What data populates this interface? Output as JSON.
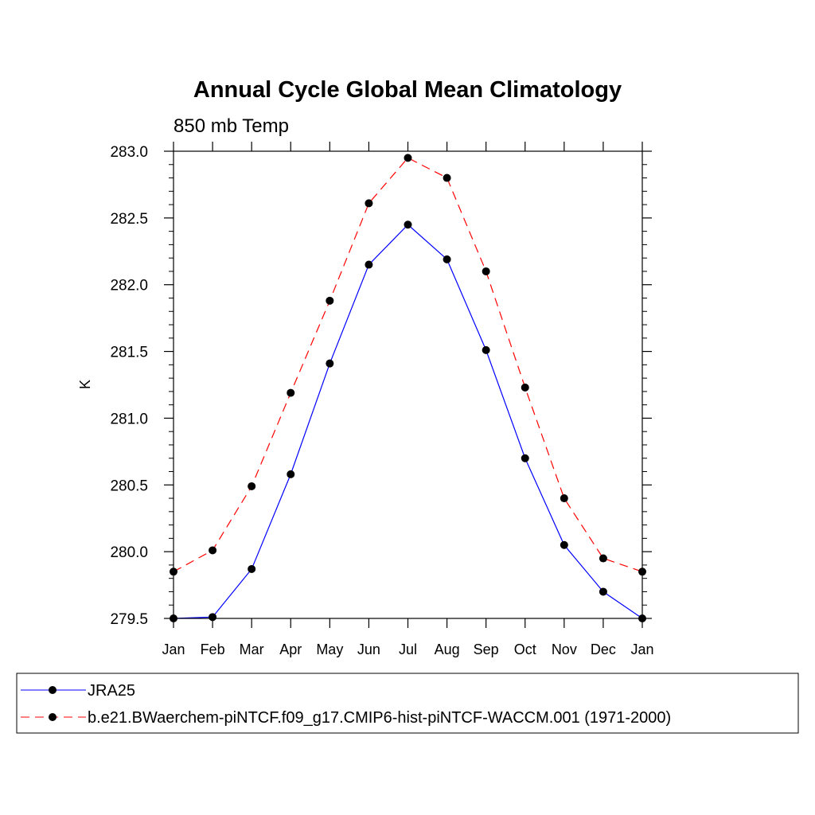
{
  "chart_data": {
    "type": "line",
    "title": "Annual Cycle Global Mean Climatology",
    "subtitle": "850 mb Temp",
    "ylabel": "K",
    "xlabel": "",
    "categories": [
      "Jan",
      "Feb",
      "Mar",
      "Apr",
      "May",
      "Jun",
      "Jul",
      "Aug",
      "Sep",
      "Oct",
      "Nov",
      "Dec",
      "Jan"
    ],
    "ylim": [
      279.5,
      283.0
    ],
    "yticks": [
      "279.5",
      "280.0",
      "280.5",
      "281.0",
      "281.5",
      "282.0",
      "282.5",
      "283.0"
    ],
    "grid": false,
    "legend_position": "bottom",
    "series": [
      {
        "name": "JRA25",
        "color": "#0000ff",
        "dash": "solid",
        "marker": "filled-circle",
        "values": [
          279.5,
          279.51,
          279.87,
          280.58,
          281.41,
          282.15,
          282.45,
          282.19,
          281.51,
          280.7,
          280.05,
          279.7,
          279.5
        ]
      },
      {
        "name": "b.e21.BWaerchem-piNTCF.f09_g17.CMIP6-hist-piNTCF-WACCM.001 (1971-2000)",
        "color": "#ff0000",
        "dash": "dashed",
        "marker": "filled-circle",
        "values": [
          279.85,
          280.01,
          280.49,
          281.19,
          281.88,
          282.61,
          282.95,
          282.8,
          282.1,
          281.23,
          280.4,
          279.95,
          279.85
        ]
      }
    ]
  }
}
